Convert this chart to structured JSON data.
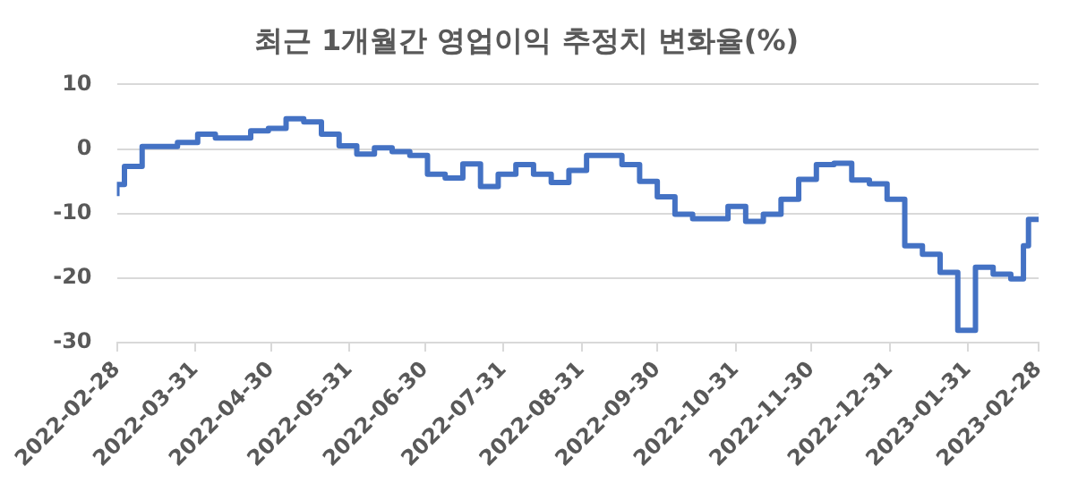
{
  "chart_data": {
    "type": "step",
    "title": "최근 1개월간 영업이익 추정치 변화율(%)",
    "x": [
      "2022-02-28",
      "2022-03-03",
      "2022-03-10",
      "2022-03-24",
      "2022-04-01",
      "2022-04-08",
      "2022-04-22",
      "2022-04-29",
      "2022-05-06",
      "2022-05-13",
      "2022-05-20",
      "2022-05-27",
      "2022-06-03",
      "2022-06-10",
      "2022-06-17",
      "2022-06-24",
      "2022-07-01",
      "2022-07-08",
      "2022-07-15",
      "2022-07-22",
      "2022-07-29",
      "2022-08-05",
      "2022-08-12",
      "2022-08-19",
      "2022-08-26",
      "2022-09-02",
      "2022-09-16",
      "2022-09-23",
      "2022-09-30",
      "2022-10-07",
      "2022-10-14",
      "2022-10-28",
      "2022-11-04",
      "2022-11-11",
      "2022-11-18",
      "2022-11-25",
      "2022-12-02",
      "2022-12-09",
      "2022-12-16",
      "2022-12-23",
      "2022-12-30",
      "2023-01-06",
      "2023-01-13",
      "2023-01-20",
      "2023-01-27",
      "2023-02-03",
      "2023-02-10",
      "2023-02-17",
      "2023-02-22",
      "2023-02-24",
      "2023-02-28"
    ],
    "series": [
      {
        "color": "#4472c4",
        "values": [
          -7.3,
          -5.5,
          -2.7,
          0.4,
          1.0,
          2.3,
          1.7,
          2.8,
          3.2,
          4.7,
          4.2,
          2.3,
          0.5,
          -0.8,
          0.2,
          -0.4,
          -1.0,
          -3.9,
          -4.5,
          -2.3,
          -5.8,
          -3.9,
          -2.4,
          -3.9,
          -5.2,
          -3.3,
          -1.0,
          -2.4,
          -5.0,
          -7.4,
          -10.1,
          -10.8,
          -8.9,
          -11.2,
          -10.1,
          -7.8,
          -4.7,
          -2.4,
          -2.2,
          -4.8,
          -5.4,
          -7.8,
          -15.0,
          -16.3,
          -19.1,
          -28.1,
          -18.3,
          -19.4,
          -20.1,
          -15.0,
          -10.9
        ]
      }
    ],
    "xlim": [
      "2022-02-28",
      "2023-02-28"
    ],
    "xticks": [
      "2022-02-28",
      "2022-03-31",
      "2022-04-30",
      "2022-05-31",
      "2022-06-30",
      "2022-07-31",
      "2022-08-31",
      "2022-09-30",
      "2022-10-31",
      "2022-11-30",
      "2022-12-31",
      "2023-01-31",
      "2023-02-28"
    ],
    "ylim": [
      -30,
      10
    ],
    "yticks": [
      10,
      0,
      -10,
      -20,
      -30
    ],
    "grid": "y",
    "legend": false,
    "marker": "none",
    "line_style": "solid"
  }
}
